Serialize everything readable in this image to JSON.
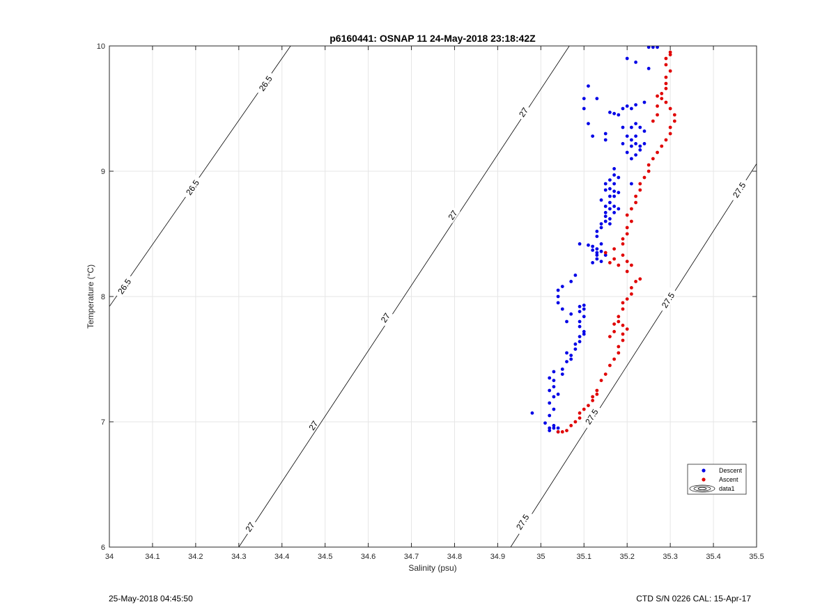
{
  "footer": {
    "left": "25-May-2018 04:45:50",
    "right": "CTD S/N 0226  CAL: 15-Apr-17"
  },
  "colors": {
    "descent": "#0000e6",
    "ascent": "#e00000",
    "grid": "#e6e6e6",
    "axis": "#262626",
    "contour": "#000000"
  },
  "chart_data": {
    "type": "scatter",
    "title": "p6160441: OSNAP 11 24-May-2018 23:18:42Z",
    "xlabel": "Salinity (psu)",
    "ylabel": "Temperature (°C)",
    "xlim": [
      34,
      35.5
    ],
    "ylim": [
      6,
      10
    ],
    "xticks": [
      "34",
      "34.1",
      "34.2",
      "34.3",
      "34.4",
      "34.5",
      "34.6",
      "34.7",
      "34.8",
      "34.9",
      "35",
      "35.1",
      "35.2",
      "35.3",
      "35.4",
      "35.5"
    ],
    "yticks": [
      "6",
      "7",
      "8",
      "9",
      "10"
    ],
    "grid": true,
    "legend": {
      "position": "bottom-right",
      "entries": [
        "Descent",
        "Ascent",
        "data1"
      ]
    },
    "density_contours": [
      {
        "label": "26.5",
        "points": [
          [
            34.0,
            7.92
          ],
          [
            34.42,
            10.0
          ]
        ],
        "labels_at": [
          [
            34.035,
            8.08
          ],
          [
            34.193,
            8.87
          ],
          [
            34.362,
            9.7
          ]
        ]
      },
      {
        "label": "27",
        "points": [
          [
            34.3,
            6.0
          ],
          [
            35.066,
            10.0
          ]
        ],
        "labels_at": [
          [
            34.326,
            6.16
          ],
          [
            34.473,
            6.97
          ],
          [
            34.64,
            7.83
          ],
          [
            34.796,
            8.65
          ],
          [
            34.96,
            9.47
          ]
        ]
      },
      {
        "label": "27.5",
        "points": [
          [
            34.93,
            6.0
          ],
          [
            35.5,
            9.06
          ]
        ],
        "labels_at": [
          [
            34.958,
            6.2
          ],
          [
            35.118,
            7.04
          ],
          [
            35.295,
            7.97
          ],
          [
            35.46,
            8.85
          ]
        ]
      }
    ],
    "series": [
      {
        "name": "Descent",
        "points": [
          [
            34.98,
            7.07
          ],
          [
            35.01,
            6.99
          ],
          [
            35.02,
            6.95
          ],
          [
            35.02,
            6.93
          ],
          [
            35.03,
            6.97
          ],
          [
            35.03,
            6.95
          ],
          [
            35.04,
            6.92
          ],
          [
            35.04,
            6.95
          ],
          [
            35.02,
            7.05
          ],
          [
            35.03,
            7.1
          ],
          [
            35.02,
            7.15
          ],
          [
            35.03,
            7.2
          ],
          [
            35.02,
            7.25
          ],
          [
            35.03,
            7.28
          ],
          [
            35.04,
            7.22
          ],
          [
            35.03,
            7.33
          ],
          [
            35.02,
            7.35
          ],
          [
            35.03,
            7.4
          ],
          [
            35.05,
            7.42
          ],
          [
            35.05,
            7.38
          ],
          [
            35.06,
            7.48
          ],
          [
            35.07,
            7.5
          ],
          [
            35.06,
            7.55
          ],
          [
            35.07,
            7.53
          ],
          [
            35.08,
            7.58
          ],
          [
            35.08,
            7.62
          ],
          [
            35.09,
            7.64
          ],
          [
            35.09,
            7.68
          ],
          [
            35.1,
            7.7
          ],
          [
            35.1,
            7.72
          ],
          [
            35.09,
            7.76
          ],
          [
            35.09,
            7.8
          ],
          [
            35.1,
            7.84
          ],
          [
            35.09,
            7.88
          ],
          [
            35.1,
            7.9
          ],
          [
            35.1,
            7.93
          ],
          [
            35.09,
            7.92
          ],
          [
            35.07,
            7.86
          ],
          [
            35.06,
            7.8
          ],
          [
            35.05,
            7.9
          ],
          [
            35.04,
            7.95
          ],
          [
            35.04,
            8.0
          ],
          [
            35.04,
            8.05
          ],
          [
            35.05,
            8.08
          ],
          [
            35.07,
            8.12
          ],
          [
            35.08,
            8.17
          ],
          [
            35.12,
            8.27
          ],
          [
            35.13,
            8.3
          ],
          [
            35.13,
            8.33
          ],
          [
            35.14,
            8.36
          ],
          [
            35.13,
            8.38
          ],
          [
            35.12,
            8.4
          ],
          [
            35.14,
            8.42
          ],
          [
            35.13,
            8.35
          ],
          [
            35.15,
            8.33
          ],
          [
            35.14,
            8.28
          ],
          [
            35.12,
            8.37
          ],
          [
            35.11,
            8.41
          ],
          [
            35.09,
            8.42
          ],
          [
            35.13,
            8.48
          ],
          [
            35.13,
            8.52
          ],
          [
            35.14,
            8.55
          ],
          [
            35.14,
            8.58
          ],
          [
            35.15,
            8.6
          ],
          [
            35.15,
            8.64
          ],
          [
            35.16,
            8.58
          ],
          [
            35.16,
            8.62
          ],
          [
            35.15,
            8.67
          ],
          [
            35.16,
            8.7
          ],
          [
            35.17,
            8.72
          ],
          [
            35.16,
            8.75
          ],
          [
            35.18,
            8.7
          ],
          [
            35.17,
            8.67
          ],
          [
            35.16,
            8.8
          ],
          [
            35.17,
            8.84
          ],
          [
            35.18,
            8.83
          ],
          [
            35.16,
            8.86
          ],
          [
            35.17,
            8.9
          ],
          [
            35.15,
            8.85
          ],
          [
            35.16,
            8.93
          ],
          [
            35.17,
            8.97
          ],
          [
            35.17,
            9.02
          ],
          [
            35.18,
            8.95
          ],
          [
            35.17,
            8.8
          ],
          [
            35.15,
            8.72
          ],
          [
            35.14,
            8.77
          ],
          [
            35.15,
            8.9
          ],
          [
            35.21,
            8.9
          ],
          [
            35.21,
            9.1
          ],
          [
            35.2,
            9.15
          ],
          [
            35.22,
            9.13
          ],
          [
            35.21,
            9.2
          ],
          [
            35.23,
            9.2
          ],
          [
            35.22,
            9.22
          ],
          [
            35.24,
            9.22
          ],
          [
            35.23,
            9.17
          ],
          [
            35.22,
            9.28
          ],
          [
            35.21,
            9.35
          ],
          [
            35.22,
            9.38
          ],
          [
            35.23,
            9.35
          ],
          [
            35.24,
            9.32
          ],
          [
            35.19,
            9.22
          ],
          [
            35.2,
            9.28
          ],
          [
            35.21,
            9.25
          ],
          [
            35.19,
            9.35
          ],
          [
            35.15,
            9.25
          ],
          [
            35.15,
            9.3
          ],
          [
            35.16,
            9.47
          ],
          [
            35.17,
            9.46
          ],
          [
            35.18,
            9.45
          ],
          [
            35.2,
            9.52
          ],
          [
            35.21,
            9.5
          ],
          [
            35.22,
            9.53
          ],
          [
            35.24,
            9.55
          ],
          [
            35.12,
            9.28
          ],
          [
            35.11,
            9.38
          ],
          [
            35.13,
            9.58
          ],
          [
            35.1,
            9.58
          ],
          [
            35.1,
            9.5
          ],
          [
            35.11,
            9.68
          ],
          [
            35.19,
            9.5
          ],
          [
            35.22,
            9.87
          ],
          [
            35.2,
            9.9
          ],
          [
            35.25,
            9.82
          ],
          [
            35.26,
            9.99
          ],
          [
            35.25,
            9.99
          ],
          [
            35.27,
            9.99
          ]
        ]
      },
      {
        "name": "Ascent",
        "points": [
          [
            35.04,
            6.92
          ],
          [
            35.05,
            6.92
          ],
          [
            35.06,
            6.93
          ],
          [
            35.07,
            6.97
          ],
          [
            35.08,
            7.0
          ],
          [
            35.09,
            7.03
          ],
          [
            35.09,
            7.07
          ],
          [
            35.1,
            7.1
          ],
          [
            35.11,
            7.13
          ],
          [
            35.12,
            7.17
          ],
          [
            35.12,
            7.2
          ],
          [
            35.13,
            7.22
          ],
          [
            35.13,
            7.25
          ],
          [
            35.14,
            7.33
          ],
          [
            35.15,
            7.38
          ],
          [
            35.16,
            7.45
          ],
          [
            35.17,
            7.5
          ],
          [
            35.18,
            7.55
          ],
          [
            35.18,
            7.6
          ],
          [
            35.19,
            7.65
          ],
          [
            35.19,
            7.7
          ],
          [
            35.2,
            7.74
          ],
          [
            35.19,
            7.77
          ],
          [
            35.18,
            7.8
          ],
          [
            35.18,
            7.84
          ],
          [
            35.17,
            7.78
          ],
          [
            35.17,
            7.72
          ],
          [
            35.16,
            7.68
          ],
          [
            35.19,
            7.9
          ],
          [
            35.19,
            7.95
          ],
          [
            35.2,
            7.98
          ],
          [
            35.21,
            8.02
          ],
          [
            35.21,
            8.07
          ],
          [
            35.22,
            8.12
          ],
          [
            35.23,
            8.14
          ],
          [
            35.2,
            8.2
          ],
          [
            35.21,
            8.25
          ],
          [
            35.2,
            8.28
          ],
          [
            35.19,
            8.33
          ],
          [
            35.17,
            8.3
          ],
          [
            35.18,
            8.25
          ],
          [
            35.16,
            8.27
          ],
          [
            35.15,
            8.35
          ],
          [
            35.17,
            8.38
          ],
          [
            35.19,
            8.42
          ],
          [
            35.19,
            8.46
          ],
          [
            35.2,
            8.5
          ],
          [
            35.2,
            8.55
          ],
          [
            35.21,
            8.6
          ],
          [
            35.2,
            8.65
          ],
          [
            35.21,
            8.7
          ],
          [
            35.22,
            8.75
          ],
          [
            35.22,
            8.8
          ],
          [
            35.23,
            8.85
          ],
          [
            35.23,
            8.9
          ],
          [
            35.24,
            8.95
          ],
          [
            35.25,
            9.0
          ],
          [
            35.25,
            9.05
          ],
          [
            35.26,
            9.1
          ],
          [
            35.27,
            9.15
          ],
          [
            35.28,
            9.2
          ],
          [
            35.29,
            9.25
          ],
          [
            35.3,
            9.3
          ],
          [
            35.3,
            9.35
          ],
          [
            35.31,
            9.4
          ],
          [
            35.31,
            9.45
          ],
          [
            35.3,
            9.5
          ],
          [
            35.29,
            9.55
          ],
          [
            35.28,
            9.58
          ],
          [
            35.28,
            9.62
          ],
          [
            35.29,
            9.66
          ],
          [
            35.29,
            9.7
          ],
          [
            35.29,
            9.75
          ],
          [
            35.3,
            9.8
          ],
          [
            35.29,
            9.85
          ],
          [
            35.29,
            9.9
          ],
          [
            35.3,
            9.93
          ],
          [
            35.3,
            9.95
          ],
          [
            35.27,
            9.45
          ],
          [
            35.26,
            9.4
          ],
          [
            35.27,
            9.6
          ],
          [
            35.27,
            9.52
          ]
        ]
      }
    ]
  }
}
